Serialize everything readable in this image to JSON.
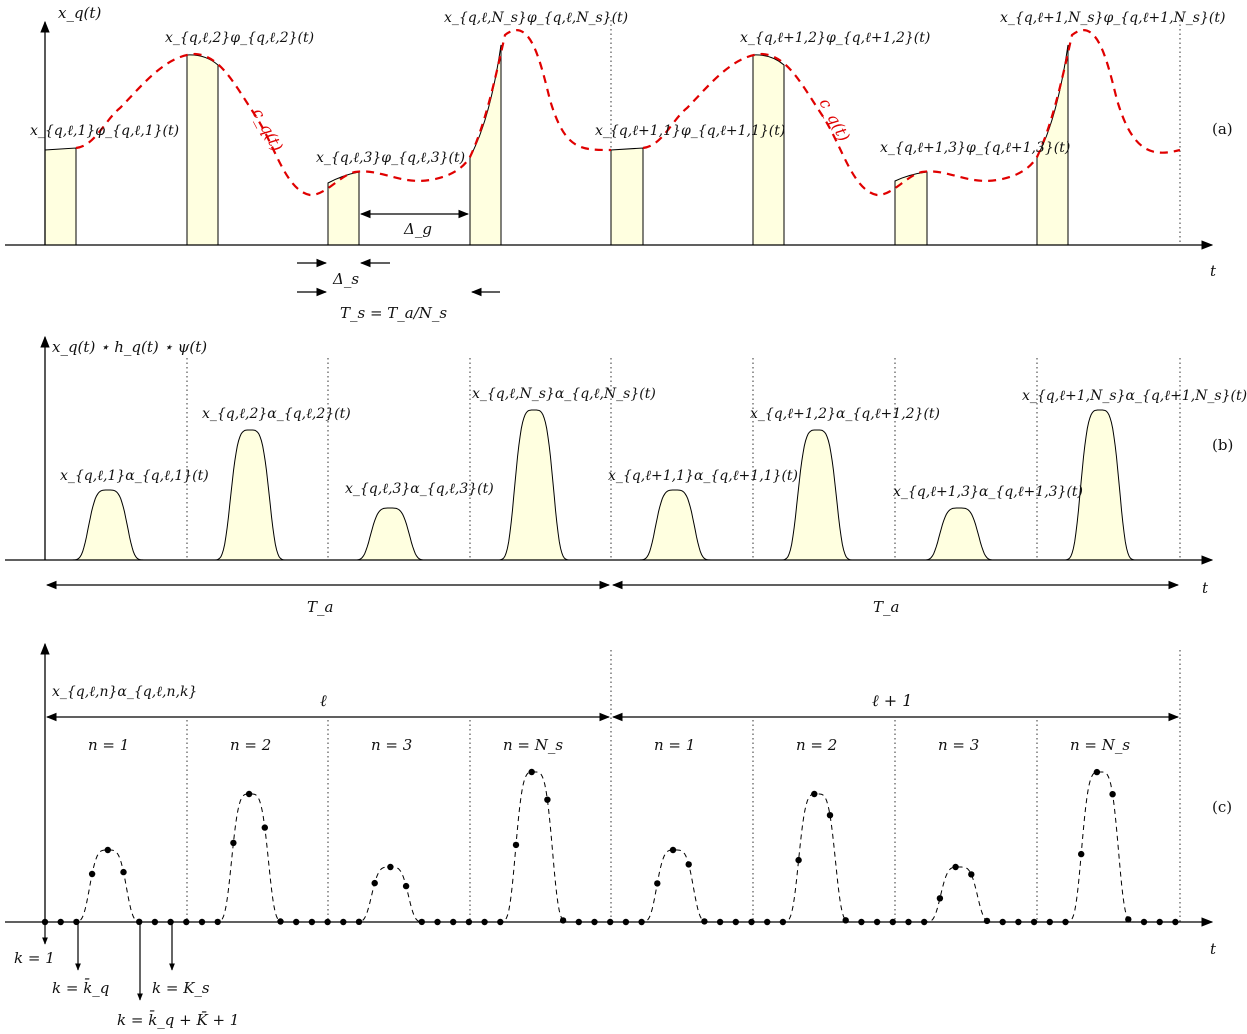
{
  "panel_a": {
    "tag": "(a)",
    "y_axis_label": "x_q(t)",
    "t_label": "t",
    "envelope_label": "c_q(t)",
    "pulse_labels": [
      "x_{q,ℓ,1}φ_{q,ℓ,1}(t)",
      "x_{q,ℓ,2}φ_{q,ℓ,2}(t)",
      "x_{q,ℓ,3}φ_{q,ℓ,3}(t)",
      "x_{q,ℓ,N_s}φ_{q,ℓ,N_s}(t)",
      "x_{q,ℓ+1,1}φ_{q,ℓ+1,1}(t)",
      "x_{q,ℓ+1,2}φ_{q,ℓ+1,2}(t)",
      "x_{q,ℓ+1,3}φ_{q,ℓ+1,3}(t)",
      "x_{q,ℓ+1,N_s}φ_{q,ℓ+1,N_s}(t)"
    ],
    "delta_g": "Δ_g",
    "delta_s": "Δ_s",
    "ts_label": "T_s = T_a/N_s"
  },
  "panel_b": {
    "tag": "(b)",
    "y_axis_label": "x_q(t) ⋆ h_q(t) ⋆ ψ(t)",
    "t_label": "t",
    "pulse_labels": [
      "x_{q,ℓ,1}α_{q,ℓ,1}(t)",
      "x_{q,ℓ,2}α_{q,ℓ,2}(t)",
      "x_{q,ℓ,3}α_{q,ℓ,3}(t)",
      "x_{q,ℓ,N_s}α_{q,ℓ,N_s}(t)",
      "x_{q,ℓ+1,1}α_{q,ℓ+1,1}(t)",
      "x_{q,ℓ+1,2}α_{q,ℓ+1,2}(t)",
      "x_{q,ℓ+1,3}α_{q,ℓ+1,3}(t)",
      "x_{q,ℓ+1,N_s}α_{q,ℓ+1,N_s}(t)"
    ],
    "ta_left": "T_a",
    "ta_right": "T_a"
  },
  "panel_c": {
    "tag": "(c)",
    "y_axis_label": "x_{q,ℓ,n}α_{q,ℓ,n,k}",
    "t_label": "t",
    "block_left": "ℓ",
    "block_right": "ℓ + 1",
    "n_labels": [
      "n = 1",
      "n = 2",
      "n = 3",
      "n = N_s",
      "n = 1",
      "n = 2",
      "n = 3",
      "n = N_s"
    ],
    "k_labels": [
      "k = 1",
      "k = k̄_q",
      "k = K_s",
      "k = k̄_q + K̄ + 1"
    ]
  },
  "colors": {
    "pulse_fill": "#ffffe0",
    "envelope": "#e00000",
    "line": "#000000"
  }
}
